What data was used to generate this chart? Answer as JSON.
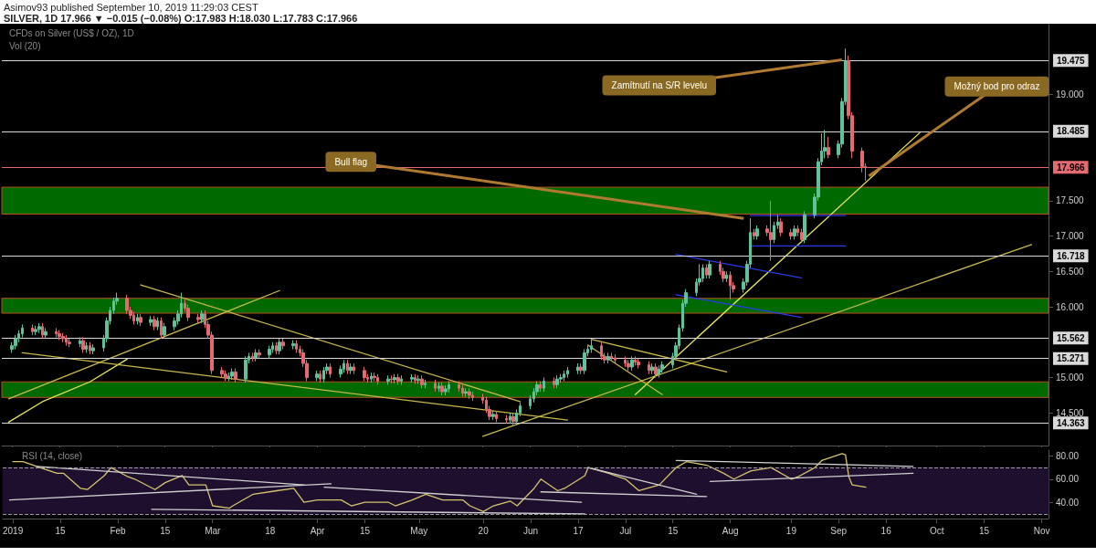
{
  "chart_data": [
    {
      "type": "candlestick",
      "title": "Asimov93 published September 10, 2019 11:29:03 CEST",
      "subtitle": "SILVER, 1D 17.966 ▼ −0.015 (−0.08%) O:17.983 H:18.030 L:17.783 C:17.966",
      "annotations": [
        "CFDs on Silver (US$ / OZ), 1D",
        "Vol (20)",
        {
          "text": "Bull flag",
          "x": "2019-08-05",
          "y": 17.25
        },
        {
          "text": "Zamítnutí na S/R levelu",
          "x": "2019-09-03",
          "y": 19.49
        },
        {
          "text": "Možný bod pro odraz",
          "x": "2019-09-11",
          "y": 17.85
        }
      ],
      "colors": [
        "#5fc29a",
        "#e36a70"
      ],
      "series": [
        {
          "x": [
            "2019-01-01",
            "2019-01-02",
            "2019-01-03",
            "2019-01-04",
            "2019-01-07",
            "2019-01-08",
            "2019-01-09",
            "2019-01-10",
            "2019-01-11",
            "2019-01-14",
            "2019-01-15",
            "2019-01-16",
            "2019-01-17",
            "2019-01-18",
            "2019-01-21",
            "2019-01-22",
            "2019-01-23",
            "2019-01-24",
            "2019-01-25",
            "2019-01-28",
            "2019-01-29",
            "2019-01-30",
            "2019-01-31",
            "2019-02-01",
            "2019-02-04",
            "2019-02-05",
            "2019-02-06",
            "2019-02-07",
            "2019-02-08",
            "2019-02-11",
            "2019-02-12",
            "2019-02-13",
            "2019-02-14",
            "2019-02-15",
            "2019-02-18",
            "2019-02-19",
            "2019-02-20",
            "2019-02-21",
            "2019-02-22",
            "2019-02-25",
            "2019-02-26",
            "2019-02-27",
            "2019-02-28",
            "2019-03-01",
            "2019-03-04",
            "2019-03-05",
            "2019-03-06",
            "2019-03-07",
            "2019-03-08",
            "2019-03-11",
            "2019-03-12",
            "2019-03-13",
            "2019-03-14",
            "2019-03-15",
            "2019-03-18",
            "2019-03-19",
            "2019-03-20",
            "2019-03-21",
            "2019-03-22",
            "2019-03-25",
            "2019-03-26",
            "2019-03-27",
            "2019-03-28",
            "2019-03-29",
            "2019-04-01",
            "2019-04-02",
            "2019-04-03",
            "2019-04-04",
            "2019-04-05",
            "2019-04-08",
            "2019-04-09",
            "2019-04-10",
            "2019-04-11",
            "2019-04-12",
            "2019-04-15",
            "2019-04-16",
            "2019-04-17",
            "2019-04-18",
            "2019-04-19",
            "2019-04-22",
            "2019-04-23",
            "2019-04-24",
            "2019-04-25",
            "2019-04-26",
            "2019-04-29",
            "2019-04-30",
            "2019-05-01",
            "2019-05-02",
            "2019-05-03",
            "2019-05-06",
            "2019-05-07",
            "2019-05-08",
            "2019-05-09",
            "2019-05-10",
            "2019-05-13",
            "2019-05-14",
            "2019-05-15",
            "2019-05-16",
            "2019-05-17",
            "2019-05-20",
            "2019-05-21",
            "2019-05-22",
            "2019-05-23",
            "2019-05-24",
            "2019-05-27",
            "2019-05-28",
            "2019-05-29",
            "2019-05-30",
            "2019-05-31",
            "2019-06-03",
            "2019-06-04",
            "2019-06-05",
            "2019-06-06",
            "2019-06-07",
            "2019-06-10",
            "2019-06-11",
            "2019-06-12",
            "2019-06-13",
            "2019-06-14",
            "2019-06-17",
            "2019-06-18",
            "2019-06-19",
            "2019-06-20",
            "2019-06-21",
            "2019-06-24",
            "2019-06-25",
            "2019-06-26",
            "2019-06-27",
            "2019-06-28",
            "2019-07-01",
            "2019-07-02",
            "2019-07-03",
            "2019-07-04",
            "2019-07-05",
            "2019-07-08",
            "2019-07-09",
            "2019-07-10",
            "2019-07-11",
            "2019-07-12",
            "2019-07-15",
            "2019-07-16",
            "2019-07-17",
            "2019-07-18",
            "2019-07-19",
            "2019-07-22",
            "2019-07-23",
            "2019-07-24",
            "2019-07-25",
            "2019-07-26",
            "2019-07-29",
            "2019-07-30",
            "2019-07-31",
            "2019-08-01",
            "2019-08-02",
            "2019-08-05",
            "2019-08-06",
            "2019-08-07",
            "2019-08-08",
            "2019-08-09",
            "2019-08-12",
            "2019-08-13",
            "2019-08-14",
            "2019-08-15",
            "2019-08-16",
            "2019-08-19",
            "2019-08-20",
            "2019-08-21",
            "2019-08-22",
            "2019-08-23",
            "2019-08-26",
            "2019-08-27",
            "2019-08-28",
            "2019-08-29",
            "2019-08-30",
            "2019-09-02",
            "2019-09-03",
            "2019-09-04",
            "2019-09-05",
            "2019-09-06",
            "2019-09-09",
            "2019-09-10"
          ],
          "ohlc": [
            [
              15.4,
              15.5,
              15.35,
              15.45
            ],
            [
              15.45,
              15.6,
              15.4,
              15.55
            ],
            [
              15.55,
              15.67,
              15.5,
              15.62
            ],
            [
              15.62,
              15.75,
              15.57,
              15.7
            ],
            [
              15.7,
              15.75,
              15.6,
              15.65
            ],
            [
              15.65,
              15.73,
              15.6,
              15.68
            ],
            [
              15.68,
              15.77,
              15.63,
              15.72
            ],
            [
              15.72,
              15.77,
              15.55,
              15.6
            ],
            [
              15.6,
              15.7,
              15.55,
              15.65
            ],
            [
              15.65,
              15.7,
              15.57,
              15.62
            ],
            [
              15.62,
              15.67,
              15.53,
              15.58
            ],
            [
              15.58,
              15.63,
              15.5,
              15.55
            ],
            [
              15.55,
              15.6,
              15.45,
              15.5
            ],
            [
              15.5,
              15.55,
              15.43,
              15.48
            ],
            [
              15.48,
              15.57,
              15.43,
              15.52
            ],
            [
              15.52,
              15.57,
              15.35,
              15.4
            ],
            [
              15.4,
              15.5,
              15.35,
              15.45
            ],
            [
              15.45,
              15.5,
              15.33,
              15.38
            ],
            [
              15.38,
              15.47,
              15.33,
              15.42
            ],
            [
              15.42,
              15.6,
              15.37,
              15.55
            ],
            [
              15.55,
              15.85,
              15.5,
              15.8
            ],
            [
              15.8,
              16.0,
              15.75,
              15.95
            ],
            [
              15.95,
              16.13,
              15.9,
              16.08
            ],
            [
              16.08,
              16.2,
              16.03,
              16.12
            ],
            [
              16.12,
              16.17,
              15.9,
              15.95
            ],
            [
              15.95,
              16.0,
              15.83,
              15.88
            ],
            [
              15.88,
              15.93,
              15.75,
              15.8
            ],
            [
              15.8,
              15.9,
              15.75,
              15.85
            ],
            [
              15.85,
              15.9,
              15.73,
              15.78
            ],
            [
              15.78,
              15.87,
              15.73,
              15.82
            ],
            [
              15.82,
              15.87,
              15.67,
              15.72
            ],
            [
              15.72,
              15.85,
              15.67,
              15.8
            ],
            [
              15.8,
              15.85,
              15.55,
              15.6
            ],
            [
              15.6,
              15.77,
              15.55,
              15.72
            ],
            [
              15.72,
              15.85,
              15.67,
              15.8
            ],
            [
              15.8,
              15.95,
              15.75,
              15.9
            ],
            [
              15.9,
              16.2,
              15.85,
              16.05
            ],
            [
              16.05,
              16.1,
              15.93,
              15.98
            ],
            [
              15.98,
              16.03,
              15.8,
              15.85
            ],
            [
              15.85,
              15.9,
              15.77,
              15.82
            ],
            [
              15.82,
              15.95,
              15.77,
              15.9
            ],
            [
              15.9,
              15.95,
              15.7,
              15.75
            ],
            [
              15.75,
              15.8,
              15.55,
              15.6
            ],
            [
              15.6,
              15.65,
              15.05,
              15.1
            ],
            [
              15.1,
              15.15,
              15.0,
              15.05
            ],
            [
              15.05,
              15.1,
              14.95,
              15.0
            ],
            [
              15.0,
              15.07,
              14.95,
              15.02
            ],
            [
              15.02,
              15.13,
              14.97,
              15.08
            ],
            [
              15.08,
              15.13,
              14.93,
              14.98
            ],
            [
              14.98,
              15.3,
              14.93,
              15.25
            ],
            [
              15.25,
              15.35,
              15.2,
              15.3
            ],
            [
              15.3,
              15.35,
              15.23,
              15.28
            ],
            [
              15.28,
              15.4,
              15.23,
              15.35
            ],
            [
              15.35,
              15.4,
              15.27,
              15.32
            ],
            [
              15.32,
              15.45,
              15.27,
              15.4
            ],
            [
              15.4,
              15.5,
              15.35,
              15.45
            ],
            [
              15.45,
              15.5,
              15.33,
              15.38
            ],
            [
              15.38,
              15.55,
              15.33,
              15.5
            ],
            [
              15.5,
              15.55,
              15.4,
              15.45
            ],
            [
              15.45,
              15.53,
              15.4,
              15.48
            ],
            [
              15.48,
              15.53,
              15.35,
              15.4
            ],
            [
              15.4,
              15.45,
              15.3,
              15.35
            ],
            [
              15.35,
              15.4,
              15.15,
              15.2
            ],
            [
              15.2,
              15.25,
              14.95,
              15.0
            ],
            [
              15.0,
              15.1,
              14.95,
              15.05
            ],
            [
              15.05,
              15.1,
              14.93,
              14.98
            ],
            [
              14.98,
              15.15,
              14.93,
              15.1
            ],
            [
              15.1,
              15.2,
              15.05,
              15.15
            ],
            [
              15.15,
              15.2,
              15.0,
              15.05
            ],
            [
              15.05,
              15.17,
              15.0,
              15.12
            ],
            [
              15.12,
              15.25,
              15.07,
              15.2
            ],
            [
              15.2,
              15.25,
              15.05,
              15.1
            ],
            [
              15.1,
              15.2,
              15.05,
              15.15
            ],
            [
              15.15,
              15.2,
              15.05,
              15.1
            ],
            [
              15.1,
              15.15,
              14.95,
              15.0
            ],
            [
              15.0,
              15.05,
              14.93,
              14.98
            ],
            [
              14.98,
              15.07,
              14.93,
              15.02
            ],
            [
              15.02,
              15.07,
              14.95,
              15.0
            ],
            [
              15.0,
              15.05,
              14.9,
              14.95
            ],
            [
              14.95,
              15.03,
              14.9,
              14.98
            ],
            [
              14.98,
              15.03,
              14.92,
              14.97
            ],
            [
              14.97,
              15.05,
              14.92,
              15.0
            ],
            [
              15.0,
              15.05,
              14.9,
              14.95
            ],
            [
              14.95,
              15.03,
              14.9,
              14.98
            ],
            [
              14.98,
              15.05,
              14.93,
              15.0
            ],
            [
              15.0,
              15.05,
              14.91,
              14.96
            ],
            [
              14.96,
              15.03,
              14.91,
              14.98
            ],
            [
              14.98,
              15.03,
              14.85,
              14.9
            ],
            [
              14.9,
              14.97,
              14.85,
              14.92
            ],
            [
              14.92,
              14.97,
              14.8,
              14.85
            ],
            [
              14.85,
              14.93,
              14.8,
              14.88
            ],
            [
              14.88,
              14.93,
              14.75,
              14.8
            ],
            [
              14.8,
              14.89,
              14.75,
              14.84
            ],
            [
              14.84,
              14.95,
              14.79,
              14.9
            ],
            [
              14.9,
              14.95,
              14.8,
              14.85
            ],
            [
              14.85,
              14.9,
              14.73,
              14.78
            ],
            [
              14.78,
              14.85,
              14.73,
              14.8
            ],
            [
              14.8,
              14.85,
              14.7,
              14.75
            ],
            [
              14.75,
              14.8,
              14.67,
              14.72
            ],
            [
              14.72,
              14.77,
              14.63,
              14.68
            ],
            [
              14.68,
              14.73,
              14.5,
              14.55
            ],
            [
              14.55,
              14.6,
              14.4,
              14.45
            ],
            [
              14.45,
              14.53,
              14.4,
              14.48
            ],
            [
              14.48,
              14.53,
              14.37,
              14.42
            ],
            [
              14.42,
              14.47,
              14.35,
              14.4
            ],
            [
              14.4,
              14.5,
              14.35,
              14.45
            ],
            [
              14.45,
              14.5,
              14.33,
              14.38
            ],
            [
              14.38,
              14.55,
              14.33,
              14.5
            ],
            [
              14.5,
              14.65,
              14.45,
              14.6
            ],
            [
              14.6,
              14.75,
              14.55,
              14.7
            ],
            [
              14.7,
              14.85,
              14.65,
              14.8
            ],
            [
              14.8,
              14.95,
              14.75,
              14.9
            ],
            [
              14.9,
              14.95,
              14.8,
              14.85
            ],
            [
              14.85,
              15.0,
              14.8,
              14.95
            ],
            [
              14.95,
              15.0,
              14.85,
              14.9
            ],
            [
              14.9,
              15.03,
              14.85,
              14.98
            ],
            [
              14.98,
              15.05,
              14.93,
              15.0
            ],
            [
              15.0,
              15.1,
              14.95,
              15.05
            ],
            [
              15.05,
              15.15,
              15.0,
              15.1
            ],
            [
              15.1,
              15.2,
              15.05,
              15.15
            ],
            [
              15.15,
              15.2,
              15.05,
              15.1
            ],
            [
              15.1,
              15.4,
              15.05,
              15.35
            ],
            [
              15.35,
              15.45,
              15.3,
              15.4
            ],
            [
              15.4,
              15.55,
              15.35,
              15.45
            ],
            [
              15.45,
              15.5,
              15.25,
              15.3
            ],
            [
              15.3,
              15.35,
              15.2,
              15.25
            ],
            [
              15.25,
              15.35,
              15.2,
              15.3
            ],
            [
              15.3,
              15.35,
              15.23,
              15.28
            ],
            [
              15.28,
              15.33,
              15.2,
              15.25
            ],
            [
              15.25,
              15.3,
              15.15,
              15.2
            ],
            [
              15.2,
              15.25,
              15.1,
              15.15
            ],
            [
              15.15,
              15.3,
              15.1,
              15.25
            ],
            [
              15.25,
              15.3,
              15.17,
              15.22
            ],
            [
              15.22,
              15.27,
              15.13,
              15.18
            ],
            [
              15.18,
              15.23,
              15.05,
              15.1
            ],
            [
              15.1,
              15.2,
              15.05,
              15.15
            ],
            [
              15.15,
              15.2,
              15.0,
              15.05
            ],
            [
              15.05,
              15.17,
              15.0,
              15.12
            ],
            [
              15.12,
              15.23,
              15.07,
              15.18
            ],
            [
              15.18,
              15.35,
              15.13,
              15.3
            ],
            [
              15.3,
              15.5,
              15.25,
              15.45
            ],
            [
              15.45,
              15.75,
              15.4,
              15.7
            ],
            [
              15.7,
              16.1,
              15.65,
              16.05
            ],
            [
              16.05,
              16.25,
              16.0,
              16.2
            ],
            [
              16.2,
              16.4,
              16.15,
              16.35
            ],
            [
              16.35,
              16.6,
              16.3,
              16.4
            ],
            [
              16.4,
              16.6,
              16.35,
              16.55
            ],
            [
              16.55,
              16.6,
              16.4,
              16.45
            ],
            [
              16.45,
              16.65,
              16.4,
              16.6
            ],
            [
              16.6,
              16.65,
              16.45,
              16.5
            ],
            [
              16.5,
              16.55,
              16.35,
              16.4
            ],
            [
              16.4,
              16.5,
              16.35,
              16.45
            ],
            [
              16.45,
              16.5,
              16.1,
              16.3
            ],
            [
              16.3,
              16.35,
              16.2,
              16.25
            ],
            [
              16.25,
              16.4,
              16.2,
              16.35
            ],
            [
              16.35,
              16.65,
              16.3,
              16.6
            ],
            [
              16.6,
              17.25,
              16.55,
              17.05
            ],
            [
              17.05,
              17.1,
              16.95,
              17.0
            ],
            [
              17.0,
              17.15,
              16.95,
              17.1
            ],
            [
              17.1,
              17.15,
              17.0,
              17.05
            ],
            [
              17.05,
              17.5,
              16.65,
              16.95
            ],
            [
              16.95,
              17.2,
              16.9,
              17.15
            ],
            [
              17.15,
              17.3,
              17.1,
              17.2
            ],
            [
              17.2,
              17.25,
              17.0,
              17.05
            ],
            [
              17.05,
              17.1,
              16.95,
              17.0
            ],
            [
              17.0,
              17.15,
              16.95,
              17.1
            ],
            [
              17.1,
              17.15,
              17.0,
              17.05
            ],
            [
              17.05,
              17.1,
              16.9,
              16.95
            ],
            [
              16.95,
              17.35,
              16.9,
              17.3
            ],
            [
              17.3,
              17.6,
              17.25,
              17.55
            ],
            [
              17.55,
              18.1,
              17.5,
              18.05
            ],
            [
              18.05,
              18.45,
              18.0,
              18.2
            ],
            [
              18.2,
              18.5,
              18.1,
              18.25
            ],
            [
              18.25,
              18.4,
              18.1,
              18.15
            ],
            [
              18.15,
              18.35,
              18.1,
              18.3
            ],
            [
              18.3,
              18.95,
              18.25,
              18.9
            ],
            [
              18.9,
              19.65,
              18.85,
              19.48
            ],
            [
              19.48,
              19.55,
              18.65,
              18.7
            ],
            [
              18.7,
              18.75,
              18.1,
              18.2
            ],
            [
              18.2,
              18.25,
              17.9,
              17.98
            ],
            [
              17.983,
              18.03,
              17.783,
              17.966
            ]
          ]
        },
        {
          "type": "line",
          "x": [
            "2018-12-31",
            "2019-01-10",
            "2019-01-24",
            "2019-02-04"
          ],
          "values": [
            14.37,
            14.66,
            14.94,
            15.26
          ],
          "color": "#e6e65c"
        },
        {
          "type": "line",
          "x": [
            "2018-12-31",
            "2019-03-21"
          ],
          "values": [
            14.7,
            16.23
          ],
          "color": "#c8b84a"
        },
        {
          "type": "line",
          "x": [
            "2019-01-04",
            "2019-06-14"
          ],
          "values": [
            15.35,
            14.4
          ],
          "color": "#c8b84a"
        },
        {
          "type": "line",
          "x": [
            "2019-02-08",
            "2019-05-31"
          ],
          "values": [
            16.31,
            14.66
          ],
          "color": "#c8b84a"
        },
        {
          "type": "line",
          "x": [
            "2019-05-20",
            "2019-10-29"
          ],
          "values": [
            14.17,
            16.88
          ],
          "color": "#c8b84a"
        },
        {
          "type": "line",
          "x": [
            "2019-07-04",
            "2019-09-26"
          ],
          "values": [
            14.76,
            18.46
          ],
          "color": "#e6e65c"
        },
        {
          "type": "line",
          "x": [
            "2019-06-21",
            "2019-07-31"
          ],
          "values": [
            15.54,
            15.08
          ],
          "color": "#c8b84a"
        },
        {
          "type": "line",
          "x": [
            "2019-06-20",
            "2019-07-12"
          ],
          "values": [
            15.46,
            14.76
          ],
          "color": "#c8b84a"
        },
        {
          "type": "line",
          "x": [
            "2019-07-16",
            "2019-08-22"
          ],
          "values": [
            16.74,
            16.41
          ],
          "color": "#2a3ae8"
        },
        {
          "type": "line",
          "x": [
            "2019-07-16",
            "2019-08-22"
          ],
          "values": [
            16.17,
            15.85
          ],
          "color": "#2a3ae8"
        },
        {
          "type": "line",
          "x": [
            "2019-08-07",
            "2019-09-04"
          ],
          "values": [
            17.29,
            17.29
          ],
          "color": "#2a3ae8"
        },
        {
          "type": "line",
          "x": [
            "2019-08-07",
            "2019-09-04"
          ],
          "values": [
            16.86,
            16.86
          ],
          "color": "#2a3ae8"
        }
      ],
      "ref_lines": [
        {
          "axis": "y",
          "value": 19.475,
          "label": "19.475",
          "color": "#d9d9d9"
        },
        {
          "axis": "y",
          "value": 18.485,
          "label": "18.485",
          "color": "#d9d9d9"
        },
        {
          "axis": "y",
          "value": 17.966,
          "label": "17.966",
          "color": "#e36a70"
        },
        {
          "axis": "y",
          "value": 16.718,
          "label": "16.718",
          "color": "#d9d9d9"
        },
        {
          "axis": "y",
          "value": 15.562,
          "label": "15.562",
          "color": "#d9d9d9"
        },
        {
          "axis": "y",
          "value": 15.271,
          "label": "15.271",
          "color": "#d9d9d9"
        },
        {
          "axis": "y",
          "value": 14.363,
          "label": "14.363",
          "color": "#d9d9d9"
        }
      ],
      "bands": [
        {
          "axis": "y",
          "from": 17.31,
          "to": 17.69,
          "color": "#006a00"
        },
        {
          "axis": "y",
          "from": 15.91,
          "to": 16.12,
          "color": "#006a00"
        },
        {
          "axis": "y",
          "from": 14.72,
          "to": 14.94,
          "color": "#006a00"
        }
      ],
      "xlim": [
        "2018-12-29",
        "2019-11-03"
      ],
      "xticks": [
        {
          "value": "2019-01-01",
          "label": null
        },
        {
          "value": "2019-01-15",
          "label": null
        },
        {
          "value": "2019-02-01",
          "label": null
        },
        {
          "value": "2019-02-15",
          "label": null
        },
        {
          "value": "2019-03-01",
          "label": null
        },
        {
          "value": "2019-03-18",
          "label": null
        },
        {
          "value": "2019-04-01",
          "label": null
        },
        {
          "value": "2019-04-15",
          "label": null
        },
        {
          "value": "2019-05-01",
          "label": null
        },
        {
          "value": "2019-05-20",
          "label": null
        },
        {
          "value": "2019-06-03",
          "label": null
        },
        {
          "value": "2019-06-17",
          "label": null
        },
        {
          "value": "2019-07-01",
          "label": null
        },
        {
          "value": "2019-07-15",
          "label": null
        },
        {
          "value": "2019-08-01",
          "label": null
        },
        {
          "value": "2019-08-19",
          "label": null
        },
        {
          "value": "2019-09-02",
          "label": null
        },
        {
          "value": "2019-09-16",
          "label": null
        },
        {
          "value": "2019-10-01",
          "label": null
        },
        {
          "value": "2019-10-15",
          "label": null
        },
        {
          "value": "2019-11-01",
          "label": null
        }
      ],
      "ylim": [
        14.04,
        20.0
      ],
      "yticks": [
        {
          "value": 14.5,
          "label": "14.500"
        },
        {
          "value": 15,
          "label": "15.000"
        },
        {
          "value": 16,
          "label": "16.000"
        },
        {
          "value": 16.5,
          "label": "16.500"
        },
        {
          "value": 17,
          "label": "17.000"
        },
        {
          "value": 17.5,
          "label": "17.500"
        },
        {
          "value": 19,
          "label": "19.000"
        }
      ],
      "tick_labels": "y",
      "line_style": "solid",
      "marker": "none"
    },
    {
      "type": "line",
      "title": "RSI (14, close)",
      "series": [
        {
          "x": [
            "2019-01-01",
            "2019-01-04",
            "2019-01-09",
            "2019-01-14",
            "2019-01-16",
            "2019-01-21",
            "2019-01-23",
            "2019-01-28",
            "2019-01-30",
            "2019-02-04",
            "2019-02-06",
            "2019-02-12",
            "2019-02-15",
            "2019-02-20",
            "2019-02-22",
            "2019-02-27",
            "2019-03-01",
            "2019-03-06",
            "2019-03-07",
            "2019-03-13",
            "2019-03-20",
            "2019-03-25",
            "2019-03-28",
            "2019-04-01",
            "2019-04-08",
            "2019-04-11",
            "2019-04-15",
            "2019-04-22",
            "2019-04-24",
            "2019-04-29",
            "2019-05-03",
            "2019-05-08",
            "2019-05-14",
            "2019-05-16",
            "2019-05-20",
            "2019-05-23",
            "2019-05-28",
            "2019-05-30",
            "2019-06-04",
            "2019-06-06",
            "2019-06-11",
            "2019-06-13",
            "2019-06-19",
            "2019-06-20",
            "2019-06-26",
            "2019-07-01",
            "2019-07-05",
            "2019-07-11",
            "2019-07-16",
            "2019-07-19",
            "2019-07-25",
            "2019-07-30",
            "2019-08-02",
            "2019-08-07",
            "2019-08-13",
            "2019-08-19",
            "2019-08-21",
            "2019-08-26",
            "2019-08-28",
            "2019-09-03",
            "2019-09-04",
            "2019-09-05",
            "2019-09-06",
            "2019-09-10"
          ],
          "values": [
            75,
            75,
            70,
            65,
            65,
            52,
            51,
            63,
            70,
            62,
            60,
            51,
            57,
            63,
            55,
            55,
            37,
            35,
            37,
            47,
            50,
            52,
            40,
            42,
            42,
            37,
            40,
            40,
            37,
            42,
            47,
            42,
            42,
            37,
            32,
            37,
            41,
            37,
            52,
            60,
            50,
            52,
            63,
            70,
            65,
            60,
            50,
            55,
            70,
            75,
            72,
            65,
            60,
            67,
            70,
            60,
            62,
            70,
            76,
            82,
            81,
            62,
            55,
            53
          ],
          "color": "#d6c56b"
        },
        {
          "x": [
            "2018-12-31",
            "2019-04-05"
          ],
          "values": [
            42,
            56
          ],
          "color": "#cfcfcf"
        },
        {
          "x": [
            "2019-01-08",
            "2019-03-28"
          ],
          "values": [
            71,
            55
          ],
          "color": "#cfcfcf"
        },
        {
          "x": [
            "2019-02-11",
            "2019-06-19"
          ],
          "values": [
            34,
            30
          ],
          "color": "#cfcfcf"
        },
        {
          "x": [
            "2019-04-03",
            "2019-06-18"
          ],
          "values": [
            53,
            40
          ],
          "color": "#cfcfcf"
        },
        {
          "x": [
            "2019-06-06",
            "2019-07-25"
          ],
          "values": [
            49,
            45
          ],
          "color": "#cfcfcf"
        },
        {
          "x": [
            "2019-06-20",
            "2019-07-22"
          ],
          "values": [
            70,
            47
          ],
          "color": "#cfcfcf"
        },
        {
          "x": [
            "2019-07-16",
            "2019-09-24"
          ],
          "values": [
            76,
            71
          ],
          "color": "#cfcfcf"
        },
        {
          "x": [
            "2019-07-26",
            "2019-09-24"
          ],
          "values": [
            58,
            65
          ],
          "color": "#cfcfcf"
        }
      ],
      "ref_lines": [
        {
          "axis": "y",
          "value": 70,
          "color": "#9a9a9a",
          "line_style": "dashed"
        },
        {
          "axis": "y",
          "value": 30,
          "color": "#9a9a9a",
          "line_style": "dashed"
        }
      ],
      "bands": [
        {
          "axis": "y",
          "from": 30,
          "to": 70,
          "color": "#1e0f2e"
        }
      ],
      "xlim": [
        "2018-12-29",
        "2019-11-03"
      ],
      "xticks": [
        {
          "value": "2019-01-01",
          "label": "2019"
        },
        {
          "value": "2019-01-15",
          "label": "15"
        },
        {
          "value": "2019-02-01",
          "label": "Feb"
        },
        {
          "value": "2019-02-15",
          "label": "15"
        },
        {
          "value": "2019-03-01",
          "label": "Mar"
        },
        {
          "value": "2019-03-18",
          "label": "18"
        },
        {
          "value": "2019-04-01",
          "label": "Apr"
        },
        {
          "value": "2019-04-15",
          "label": "15"
        },
        {
          "value": "2019-05-01",
          "label": "May"
        },
        {
          "value": "2019-05-20",
          "label": "20"
        },
        {
          "value": "2019-06-03",
          "label": "Jun"
        },
        {
          "value": "2019-06-17",
          "label": "17"
        },
        {
          "value": "2019-07-01",
          "label": "Jul"
        },
        {
          "value": "2019-07-15",
          "label": "15"
        },
        {
          "value": "2019-08-01",
          "label": "Aug"
        },
        {
          "value": "2019-08-19",
          "label": "19"
        },
        {
          "value": "2019-09-02",
          "label": "Sep"
        },
        {
          "value": "2019-09-16",
          "label": "16"
        },
        {
          "value": "2019-10-01",
          "label": "Oct"
        },
        {
          "value": "2019-10-15",
          "label": "15"
        },
        {
          "value": "2019-11-01",
          "label": "Nov"
        }
      ],
      "ylim": [
        26,
        85
      ],
      "yticks": [
        {
          "value": 40,
          "label": "40.00"
        },
        {
          "value": 60,
          "label": "60.00"
        },
        {
          "value": 80,
          "label": "80.00"
        }
      ],
      "line_style": "solid",
      "marker": "none"
    }
  ]
}
